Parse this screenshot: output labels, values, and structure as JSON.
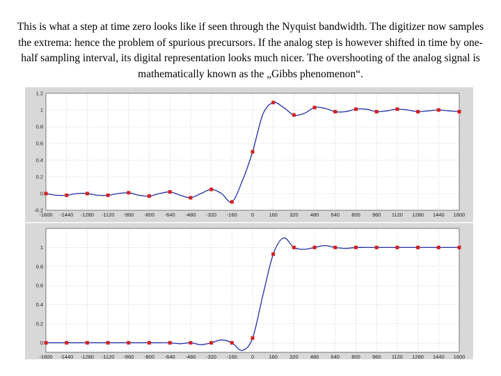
{
  "caption": "This is what a step at time zero looks like if seen through the Nyquist bandwidth. The digitizer now samples the extrema: hence the problem of spurious precursors. If the analog step is however shifted in time by one-half sampling interval, its digital representation looks much nicer. The overshooting of the analog signal is mathematically  known as the „Gibbs phenomenon“.",
  "colors": {
    "curve": "#1c2ea8",
    "marker": "#d42020",
    "grid": "#9a9a9a",
    "panel_bg": "#d8d8d8",
    "plot_bg": "#ffffff"
  },
  "chart_data": [
    {
      "type": "line",
      "title": "",
      "xlabel": "",
      "ylabel": "",
      "grid": true,
      "xlim": [
        -1600,
        1600
      ],
      "ylim": [
        -0.2,
        1.2
      ],
      "x_ticks": [
        "-1600",
        "-1440",
        "-1280",
        "-1120",
        "-960",
        "-800",
        "-640",
        "-480",
        "-320",
        "-160",
        "0",
        "160",
        "320",
        "480",
        "640",
        "800",
        "960",
        "1120",
        "1280",
        "1440",
        "1600"
      ],
      "y_ticks": [
        "-0.2",
        "0",
        "0.2",
        "0.4",
        "0.6",
        "0.8",
        "1",
        "1.2"
      ],
      "samples": {
        "x": [
          -1600,
          -1440,
          -1280,
          -1120,
          -960,
          -800,
          -640,
          -480,
          -320,
          -160,
          0,
          160,
          320,
          480,
          640,
          800,
          960,
          1120,
          1280,
          1440,
          1600
        ],
        "y": [
          0.0,
          -0.02,
          0.0,
          -0.02,
          0.01,
          -0.03,
          0.02,
          -0.05,
          0.05,
          -0.1,
          0.5,
          1.09,
          0.94,
          1.03,
          0.98,
          1.01,
          0.98,
          1.01,
          0.98,
          1.0,
          0.98
        ]
      },
      "curve": {
        "x": [
          -1600,
          -1520,
          -1440,
          -1360,
          -1280,
          -1200,
          -1120,
          -1040,
          -960,
          -880,
          -800,
          -720,
          -640,
          -560,
          -480,
          -400,
          -320,
          -240,
          -160,
          -80,
          0,
          80,
          160,
          240,
          320,
          400,
          480,
          560,
          640,
          720,
          800,
          880,
          960,
          1040,
          1120,
          1200,
          1280,
          1360,
          1440,
          1520,
          1600
        ],
        "y": [
          0.0,
          -0.02,
          -0.02,
          0.0,
          0.0,
          -0.02,
          -0.02,
          0.0,
          0.01,
          -0.02,
          -0.03,
          0.0,
          0.02,
          -0.02,
          -0.05,
          0.0,
          0.05,
          0.0,
          -0.1,
          0.15,
          0.5,
          0.95,
          1.09,
          1.03,
          0.94,
          0.96,
          1.03,
          1.02,
          0.98,
          0.98,
          1.01,
          1.01,
          0.98,
          0.99,
          1.01,
          1.0,
          0.98,
          0.99,
          1.0,
          0.99,
          0.98
        ]
      }
    },
    {
      "type": "line",
      "title": "",
      "xlabel": "",
      "ylabel": "",
      "grid": true,
      "xlim": [
        -1600,
        1600
      ],
      "ylim": [
        -0.1,
        1.2
      ],
      "x_ticks": [
        "-1600",
        "-1440",
        "-1280",
        "-1120",
        "-960",
        "-800",
        "-640",
        "-480",
        "-320",
        "-160",
        "0",
        "160",
        "320",
        "480",
        "640",
        "800",
        "960",
        "1120",
        "1280",
        "1440",
        "1600"
      ],
      "y_ticks": [
        "0",
        "0.2",
        "0.4",
        "0.6",
        "0.8",
        "1"
      ],
      "samples": {
        "x": [
          -1600,
          -1440,
          -1280,
          -1120,
          -960,
          -800,
          -640,
          -480,
          -320,
          -160,
          0,
          160,
          320,
          480,
          640,
          800,
          960,
          1120,
          1280,
          1440,
          1600
        ],
        "y": [
          0.0,
          0.0,
          0.0,
          0.0,
          0.0,
          0.0,
          0.0,
          0.0,
          0.0,
          0.0,
          0.05,
          0.93,
          1.0,
          1.0,
          1.0,
          1.0,
          1.0,
          1.0,
          1.0,
          1.0,
          1.0
        ]
      },
      "curve": {
        "x": [
          -1600,
          -1520,
          -1440,
          -1360,
          -1280,
          -1200,
          -1120,
          -1040,
          -960,
          -880,
          -800,
          -720,
          -640,
          -560,
          -480,
          -400,
          -320,
          -240,
          -160,
          -80,
          0,
          80,
          160,
          240,
          320,
          400,
          480,
          560,
          640,
          720,
          800,
          880,
          960,
          1040,
          1120,
          1200,
          1280,
          1360,
          1440,
          1520,
          1600
        ],
        "y": [
          0.0,
          0.0,
          0.0,
          0.0,
          0.0,
          0.0,
          0.0,
          0.0,
          0.0,
          0.0,
          0.0,
          0.0,
          0.0,
          -0.01,
          0.0,
          -0.02,
          0.0,
          0.03,
          0.0,
          -0.08,
          0.05,
          0.5,
          0.93,
          1.1,
          1.0,
          0.98,
          1.0,
          1.02,
          1.0,
          0.99,
          1.0,
          1.0,
          1.0,
          1.0,
          1.0,
          1.0,
          1.0,
          1.0,
          1.0,
          1.0,
          1.0
        ]
      }
    }
  ]
}
